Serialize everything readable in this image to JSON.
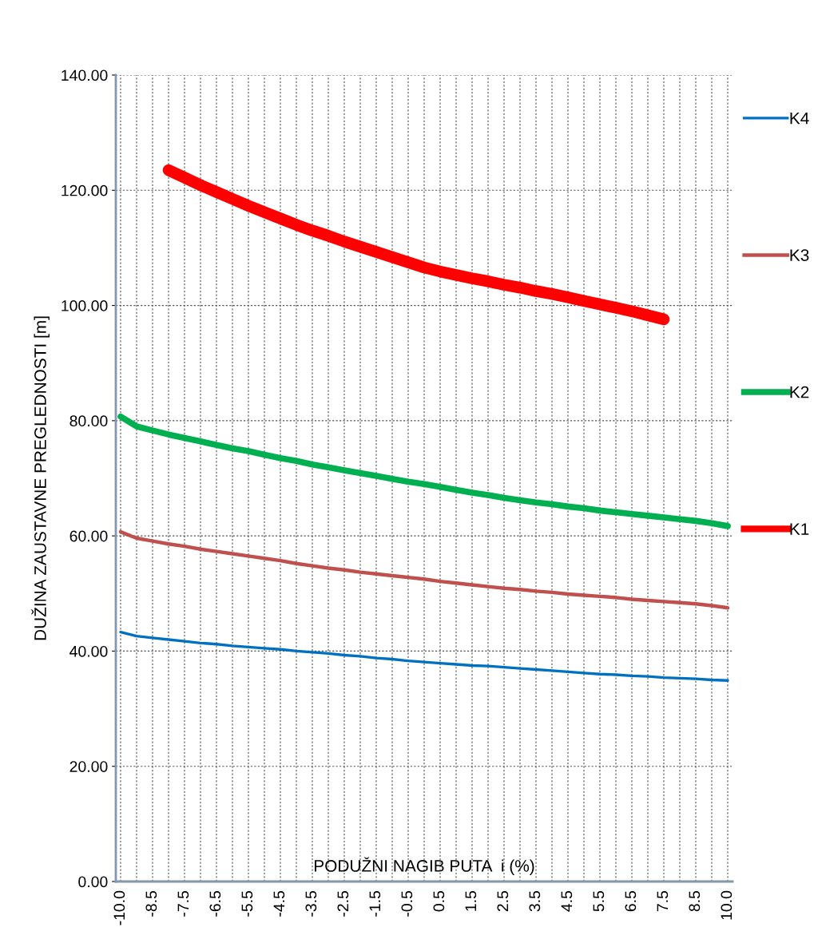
{
  "chart_data": {
    "type": "line",
    "ylabel": "DUŽINA ZAUSTAVNE PREGLEDNOSTI [m]",
    "xlabel": "PODUŽNI NAGIB PUTA  i (%)",
    "categories": [
      "-10.0",
      null,
      "-8.5",
      null,
      "-7.5",
      null,
      "-6.5",
      null,
      "-5.5",
      null,
      "-4.5",
      null,
      "-3.5",
      null,
      "-2.5",
      null,
      "-1.5",
      null,
      "-0.5",
      null,
      "0.5",
      null,
      "1.5",
      null,
      "2.5",
      null,
      "3.5",
      null,
      "4.5",
      null,
      "5.5",
      null,
      "6.5",
      null,
      "7.5",
      null,
      "8.5",
      null,
      "10.0"
    ],
    "series": [
      {
        "name": "K4",
        "color": "#0070c0",
        "values": [
          43.3,
          42.6,
          42.3,
          42.0,
          41.7,
          41.4,
          41.2,
          40.9,
          40.7,
          40.5,
          40.3,
          40.0,
          39.8,
          39.6,
          39.3,
          39.1,
          38.8,
          38.6,
          38.3,
          38.1,
          37.9,
          37.7,
          37.5,
          37.4,
          37.2,
          37.0,
          36.8,
          36.6,
          36.4,
          36.2,
          36.0,
          35.9,
          35.7,
          35.6,
          35.4,
          35.3,
          35.2,
          35.0,
          34.9
        ]
      },
      {
        "name": "K3",
        "color": "#c0504d",
        "values": [
          60.7,
          59.6,
          59.1,
          58.6,
          58.2,
          57.7,
          57.3,
          56.9,
          56.5,
          56.1,
          55.7,
          55.2,
          54.8,
          54.4,
          54.1,
          53.7,
          53.4,
          53.1,
          52.8,
          52.5,
          52.1,
          51.8,
          51.5,
          51.2,
          50.9,
          50.7,
          50.4,
          50.2,
          49.9,
          49.7,
          49.5,
          49.3,
          49.0,
          48.8,
          48.6,
          48.4,
          48.2,
          47.9,
          47.5
        ]
      },
      {
        "name": "K2",
        "color": "#00b050",
        "values": [
          80.7,
          79.0,
          78.3,
          77.6,
          77.0,
          76.4,
          75.8,
          75.2,
          74.7,
          74.1,
          73.5,
          73.0,
          72.4,
          71.9,
          71.4,
          70.9,
          70.4,
          69.9,
          69.4,
          69.0,
          68.5,
          68.0,
          67.5,
          67.1,
          66.6,
          66.2,
          65.8,
          65.5,
          65.1,
          64.8,
          64.4,
          64.1,
          63.8,
          63.5,
          63.2,
          62.9,
          62.6,
          62.2,
          61.7
        ]
      },
      {
        "name": "K1",
        "color": "#ff0000",
        "values": [
          null,
          null,
          null,
          123.5,
          122.2,
          120.9,
          119.7,
          118.5,
          117.3,
          116.2,
          115.1,
          114.0,
          113.0,
          112.1,
          111.1,
          110.2,
          109.3,
          108.4,
          107.5,
          106.6,
          105.9,
          105.3,
          104.7,
          104.2,
          103.6,
          103.1,
          102.5,
          102.0,
          101.4,
          100.8,
          100.2,
          99.6,
          99.0,
          98.3,
          97.6,
          null,
          null,
          null,
          null
        ]
      }
    ],
    "ylim": [
      0,
      140
    ],
    "yticks": [
      {
        "value": 0,
        "label": "0.00"
      },
      {
        "value": 20,
        "label": "20.00"
      },
      {
        "value": 40,
        "label": "40.00"
      },
      {
        "value": 60,
        "label": "60.00"
      },
      {
        "value": 80,
        "label": "80.00"
      },
      {
        "value": 100,
        "label": "100.00"
      },
      {
        "value": 120,
        "label": "120.00"
      },
      {
        "value": 140,
        "label": "140.00"
      }
    ],
    "grid": true,
    "legend": "right",
    "marker": "none",
    "line_style": "solid"
  }
}
